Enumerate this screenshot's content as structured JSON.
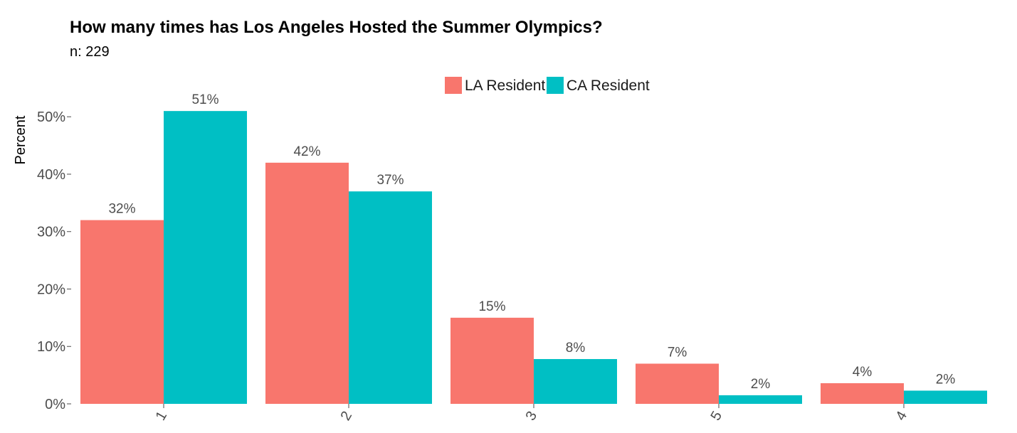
{
  "chart_data": {
    "type": "bar",
    "title": "How many times has Los Angeles Hosted the Summer Olympics?",
    "subtitle": "n:  229",
    "ylabel": "Percent",
    "xlabel": "",
    "ylim": [
      0,
      53
    ],
    "yticks": [
      0,
      10,
      20,
      30,
      40,
      50
    ],
    "ytick_suffix": "%",
    "categories": [
      "1",
      "2",
      "3",
      "5",
      "4"
    ],
    "legend_position": "top-center",
    "grid": false,
    "series": [
      {
        "name": "LA Resident",
        "color": "#F8766D",
        "values": [
          32,
          42,
          15,
          7,
          4
        ]
      },
      {
        "name": "CA Resident",
        "color": "#00BFC4",
        "values": [
          51,
          37,
          8,
          2,
          2
        ]
      }
    ],
    "series_values_plotted": [
      [
        32,
        42,
        15,
        7,
        3.6
      ],
      [
        51,
        37,
        7.8,
        1.5,
        2.3
      ]
    ]
  }
}
